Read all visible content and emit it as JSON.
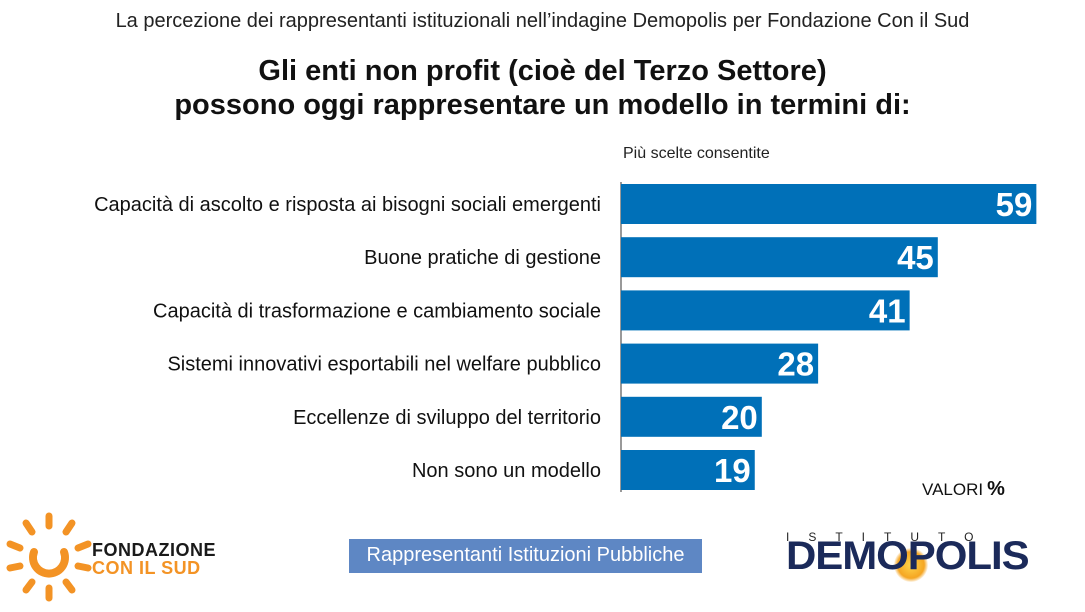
{
  "header": {
    "subtitle": "La percezione dei rappresentanti istituzionali nell’indagine Demopolis per Fondazione Con il Sud",
    "title_line1": "Gli enti non profit (cioè del Terzo Settore)",
    "title_line2": "possono oggi rappresentare un modello in termini di:"
  },
  "note": "Più scelte consentite",
  "valori_label": "VALORI",
  "valori_unit": "%",
  "sample_label": "Rappresentanti Istituzioni Pubbliche",
  "logos": {
    "fcs_line1": "FONDAZIONE",
    "fcs_line2": "CON IL SUD",
    "demopolis_small": "ISTITUTO",
    "demopolis_big": "DEMOPOLIS"
  },
  "colors": {
    "bar": "#0070b8",
    "sample_box": "#5e87c4",
    "fcs_orange": "#f39325",
    "demopolis_blue": "#1b2a5a"
  },
  "chart_data": {
    "type": "bar",
    "orientation": "horizontal",
    "categories": [
      "Capacità di ascolto e risposta ai bisogni sociali emergenti",
      "Buone pratiche di gestione",
      "Capacità di trasformazione e cambiamento sociale",
      "Sistemi innovativi esportabili nel welfare pubblico",
      "Eccellenze di sviluppo del territorio",
      "Non sono un modello"
    ],
    "values": [
      59,
      45,
      41,
      28,
      20,
      19
    ],
    "title": "Gli enti non profit (cioè del Terzo Settore) possono oggi rappresentare un modello in termini di:",
    "xlabel": "",
    "ylabel": "",
    "unit": "%",
    "xlim": [
      0,
      65
    ],
    "grid": false,
    "data_labels": true
  }
}
